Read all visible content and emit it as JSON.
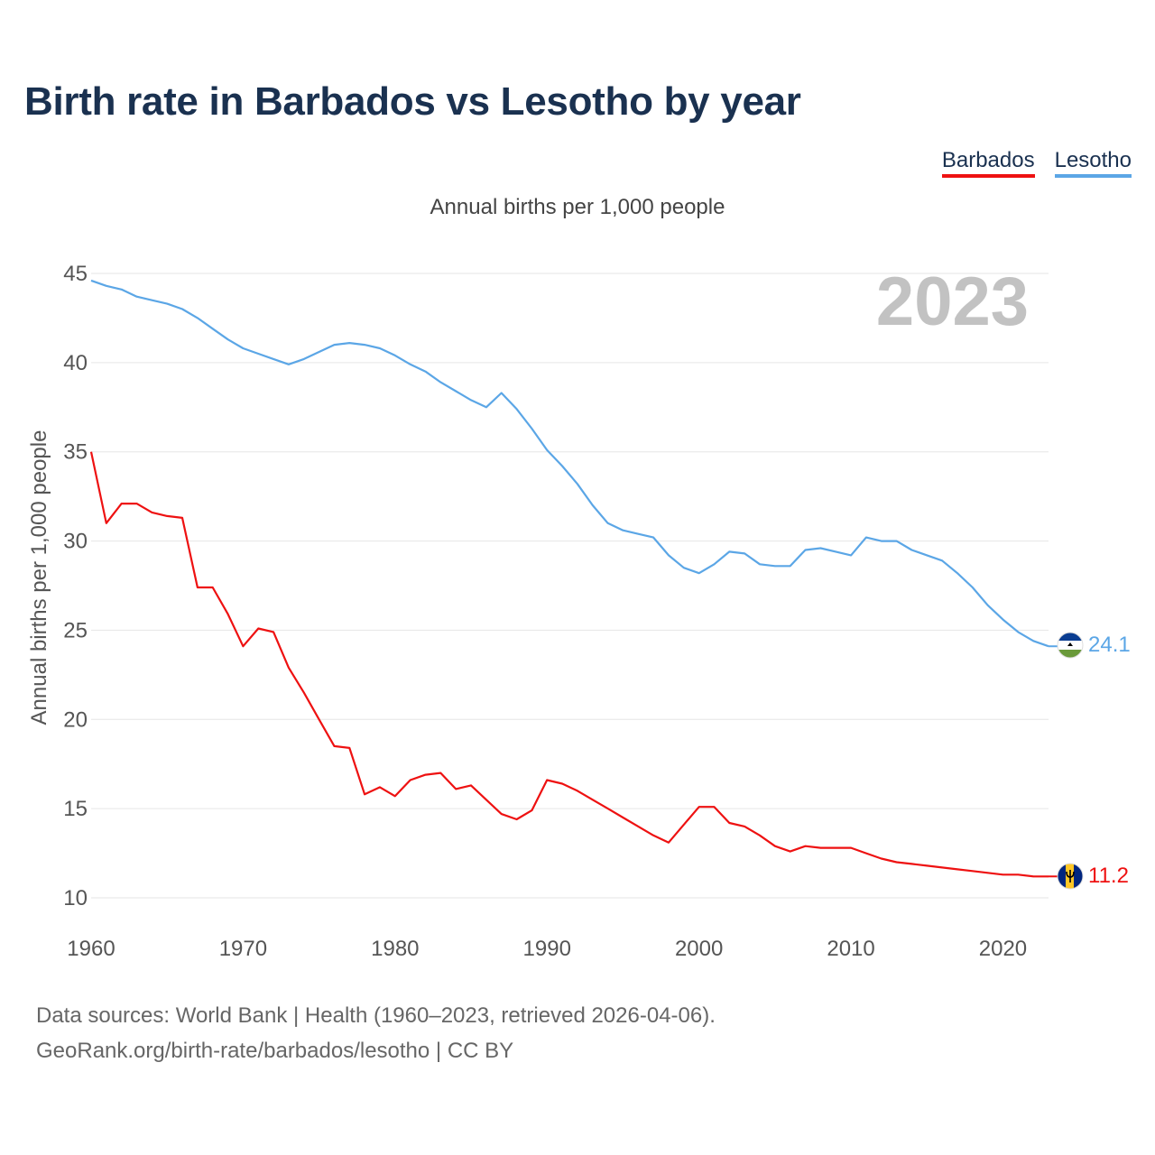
{
  "title": "Birth rate in Barbados vs Lesotho by year",
  "subtitle": "Annual births per 1,000 people",
  "legend": [
    {
      "name": "Barbados",
      "color": "#ee1111"
    },
    {
      "name": "Lesotho",
      "color": "#5ba6e6"
    }
  ],
  "year_label": "2023",
  "sources": {
    "line1": "Data sources: World Bank | Health (1960–2023, retrieved 2026-04-06).",
    "line2": "GeoRank.org/birth-rate/barbados/lesotho | CC BY"
  },
  "chart_data": {
    "type": "line",
    "title": "Birth rate in Barbados vs Lesotho by year",
    "subtitle": "Annual births per 1,000 people",
    "xlabel": "",
    "ylabel": "Annual births per 1,000 people",
    "xlim": [
      1960,
      2023
    ],
    "ylim": [
      10,
      45
    ],
    "xticks": [
      1960,
      1970,
      1980,
      1990,
      2000,
      2010,
      2020
    ],
    "yticks": [
      10,
      15,
      20,
      25,
      30,
      35,
      40,
      45
    ],
    "grid": true,
    "legend_position": "top-right",
    "x": [
      1960,
      1961,
      1962,
      1963,
      1964,
      1965,
      1966,
      1967,
      1968,
      1969,
      1970,
      1971,
      1972,
      1973,
      1974,
      1975,
      1976,
      1977,
      1978,
      1979,
      1980,
      1981,
      1982,
      1983,
      1984,
      1985,
      1986,
      1987,
      1988,
      1989,
      1990,
      1991,
      1992,
      1993,
      1994,
      1995,
      1996,
      1997,
      1998,
      1999,
      2000,
      2001,
      2002,
      2003,
      2004,
      2005,
      2006,
      2007,
      2008,
      2009,
      2010,
      2011,
      2012,
      2013,
      2014,
      2015,
      2016,
      2017,
      2018,
      2019,
      2020,
      2021,
      2022,
      2023
    ],
    "series": [
      {
        "name": "Barbados",
        "color": "#ee1111",
        "end_label": "11.2",
        "values": [
          35.0,
          31.0,
          32.1,
          32.1,
          31.6,
          31.4,
          31.3,
          27.4,
          27.4,
          25.9,
          24.1,
          25.1,
          24.9,
          22.9,
          21.5,
          20.0,
          18.5,
          18.4,
          15.8,
          16.2,
          15.7,
          16.6,
          16.9,
          17.0,
          16.1,
          16.3,
          15.5,
          14.7,
          14.4,
          14.9,
          16.6,
          16.4,
          16.0,
          15.5,
          15.0,
          14.5,
          14.0,
          13.5,
          13.1,
          14.1,
          15.1,
          15.1,
          14.2,
          14.0,
          13.5,
          12.9,
          12.6,
          12.9,
          12.8,
          12.8,
          12.8,
          12.5,
          12.2,
          12.0,
          11.9,
          11.8,
          11.7,
          11.6,
          11.5,
          11.4,
          11.3,
          11.3,
          11.2,
          11.2
        ]
      },
      {
        "name": "Lesotho",
        "color": "#5ba6e6",
        "end_label": "24.1",
        "values": [
          44.6,
          44.3,
          44.1,
          43.7,
          43.5,
          43.3,
          43.0,
          42.5,
          41.9,
          41.3,
          40.8,
          40.5,
          40.2,
          39.9,
          40.2,
          40.6,
          41.0,
          41.1,
          41.0,
          40.8,
          40.4,
          39.9,
          39.5,
          38.9,
          38.4,
          37.9,
          37.5,
          38.3,
          37.4,
          36.3,
          35.1,
          34.2,
          33.2,
          32.0,
          31.0,
          30.6,
          30.4,
          30.2,
          29.2,
          28.5,
          28.2,
          28.7,
          29.4,
          29.3,
          28.7,
          28.6,
          28.6,
          29.5,
          29.6,
          29.4,
          29.2,
          30.2,
          30.0,
          30.0,
          29.5,
          29.2,
          28.9,
          28.2,
          27.4,
          26.4,
          25.6,
          24.9,
          24.4,
          24.1
        ]
      }
    ]
  }
}
